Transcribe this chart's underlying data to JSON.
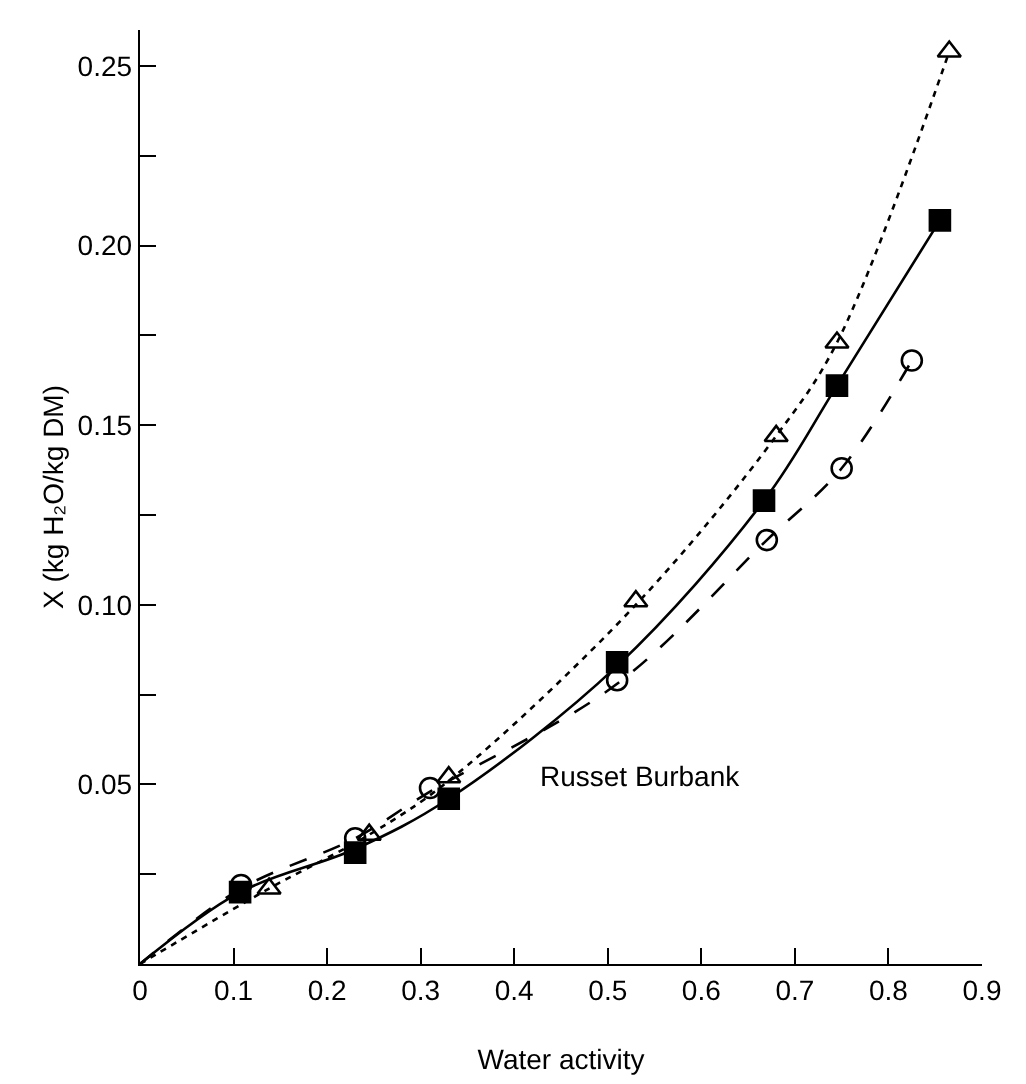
{
  "chart_data": {
    "type": "scatter",
    "xlabel": "Water activity",
    "ylabel": "X (kg H₂O/kg DM)",
    "annotations": [
      "Russet Burbank"
    ],
    "xlim": [
      0,
      0.9
    ],
    "xticks": [
      0,
      0.1,
      0.2,
      0.3,
      0.4,
      0.5,
      0.6,
      0.7,
      0.8,
      0.9
    ],
    "ylim": [
      0,
      0.26
    ],
    "yticks": [
      {
        "value": 0.025,
        "label": null
      },
      0.05,
      {
        "value": 0.075,
        "label": null
      },
      {
        "value": 0.1,
        "label": "0.10"
      },
      {
        "value": 0.125,
        "label": null
      },
      0.15,
      {
        "value": 0.175,
        "label": null
      },
      {
        "value": 0.2,
        "label": "0.20"
      },
      {
        "value": 0.225,
        "label": null
      },
      0.25
    ],
    "grid": false,
    "series": [
      {
        "type": "line",
        "color": "#000000",
        "line_style": "dashed",
        "marker": "none",
        "x": [
          0,
          0.108,
          0.23,
          0.31,
          0.51,
          0.67,
          0.75,
          0.825
        ],
        "values": [
          0,
          0.021,
          0.035,
          0.048,
          0.078,
          0.118,
          0.138,
          0.168
        ]
      },
      {
        "type": "line",
        "color": "#000000",
        "line_style": "solid",
        "marker": "none",
        "x": [
          0,
          0.107,
          0.23,
          0.33,
          0.51,
          0.667,
          0.745,
          0.855
        ],
        "values": [
          0,
          0.02,
          0.032,
          0.046,
          0.083,
          0.129,
          0.161,
          0.207
        ]
      },
      {
        "type": "line",
        "color": "#000000",
        "line_style": "dotted",
        "marker": "none",
        "x": [
          0,
          0.138,
          0.245,
          0.33,
          0.53,
          0.68,
          0.745,
          0.865
        ],
        "values": [
          0,
          0.021,
          0.036,
          0.051,
          0.1,
          0.147,
          0.173,
          0.254
        ]
      },
      {
        "color": "#000000",
        "marker": "circle",
        "x": [
          0.108,
          0.23,
          0.31,
          0.51,
          0.67,
          0.75,
          0.825
        ],
        "values": [
          0.022,
          0.035,
          0.049,
          0.079,
          0.118,
          0.138,
          0.168
        ]
      },
      {
        "color": "#000000",
        "marker": "square",
        "x": [
          0.107,
          0.23,
          0.33,
          0.51,
          0.667,
          0.745,
          0.855
        ],
        "values": [
          0.02,
          0.031,
          0.046,
          0.084,
          0.129,
          0.161,
          0.207
        ]
      },
      {
        "color": "#000000",
        "marker": "triangle",
        "x": [
          0.138,
          0.245,
          0.33,
          0.53,
          0.68,
          0.745,
          0.865
        ],
        "values": [
          0.021,
          0.036,
          0.052,
          0.101,
          0.147,
          0.173,
          0.254
        ]
      }
    ]
  }
}
